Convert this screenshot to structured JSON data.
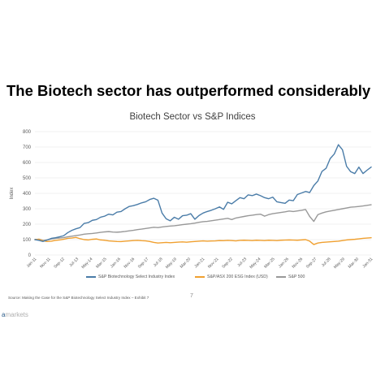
{
  "headline": "The Biotech sector has outperformed considerably",
  "chart_data": {
    "type": "line",
    "title": "Biotech Sector vs S&P Indices",
    "ylabel": "Index",
    "xlabel": "",
    "ylim": [
      0,
      800
    ],
    "yticks": [
      0,
      100,
      200,
      300,
      400,
      500,
      600,
      700,
      800
    ],
    "grid": true,
    "legend_position": "bottom",
    "x_tick_labels": [
      "Jan-11",
      "Nov-11",
      "Sep-12",
      "Jul-13",
      "May-14",
      "Mar-15",
      "Jan-16",
      "Nov-16",
      "Sep-17",
      "Jul-18",
      "May-19",
      "Mar-20",
      "Jan-21",
      "Nov-21",
      "Sep-22",
      "Jul-23",
      "May-24",
      "Mar-25",
      "Jan-26",
      "Nov-26",
      "Sep-27",
      "Jul-28",
      "May-29",
      "Mar-30",
      "Jan-31"
    ],
    "series": [
      {
        "name": "S&P Biotechnology Select Industry Index",
        "color": "#4a7ca8",
        "x": [
          "Jan-11",
          "Apr-11",
          "Jul-11",
          "Oct-11",
          "Jan-12",
          "Apr-12",
          "Jul-12",
          "Oct-12",
          "Jan-13",
          "Apr-13",
          "Jul-13",
          "Oct-13",
          "Jan-14",
          "Apr-14",
          "Jul-14",
          "Oct-14",
          "Jan-15",
          "Apr-15",
          "Jul-15",
          "Oct-15",
          "Jan-16",
          "Apr-16",
          "Jul-16",
          "Oct-16",
          "Jan-17",
          "Apr-17",
          "Jul-17",
          "Oct-17",
          "Jan-18",
          "Apr-18",
          "Jul-18",
          "Oct-18",
          "Jan-19",
          "Apr-19",
          "Jul-19",
          "Oct-19",
          "Jan-20",
          "Apr-20",
          "Jul-20",
          "Oct-20",
          "Jan-21",
          "Apr-21",
          "Jul-21",
          "Oct-21",
          "Jan-22",
          "Apr-22",
          "Jul-22",
          "Oct-22",
          "Jan-23",
          "Apr-23",
          "Jul-23",
          "Oct-23",
          "Jan-24",
          "Apr-24",
          "Jul-24",
          "Oct-24",
          "Jan-25",
          "Apr-25",
          "Jul-25",
          "Oct-25",
          "Jan-26",
          "Apr-26",
          "Jul-26",
          "Oct-26",
          "Jan-27",
          "Apr-27",
          "Jul-27",
          "Oct-27",
          "Jan-28",
          "Apr-28",
          "Jul-28",
          "Oct-28",
          "Jan-29",
          "Apr-29",
          "Jul-29",
          "Oct-29",
          "Jan-30",
          "Apr-30",
          "Jul-30",
          "Oct-30",
          "Jan-31",
          "Apr-31",
          "Jul-31"
        ],
        "values": [
          100,
          95,
          88,
          98,
          108,
          112,
          118,
          125,
          145,
          160,
          170,
          178,
          205,
          210,
          225,
          230,
          245,
          252,
          265,
          260,
          278,
          282,
          300,
          315,
          320,
          328,
          338,
          345,
          360,
          368,
          355,
          272,
          235,
          222,
          245,
          232,
          255,
          258,
          268,
          232,
          256,
          272,
          282,
          290,
          300,
          312,
          296,
          342,
          332,
          352,
          372,
          365,
          390,
          385,
          395,
          385,
          372,
          365,
          375,
          345,
          340,
          335,
          356,
          352,
          392,
          402,
          412,
          405,
          450,
          480,
          542,
          562,
          625,
          655,
          715,
          682,
          575,
          540,
          528,
          570,
          528,
          550,
          570
        ]
      },
      {
        "name": "S&P/ASX 200 ESG Index (USD)",
        "color": "#f0a030",
        "x": [
          "Jan-11",
          "Apr-11",
          "Jul-11",
          "Oct-11",
          "Jan-12",
          "Apr-12",
          "Jul-12",
          "Oct-12",
          "Jan-13",
          "Apr-13",
          "Jul-13",
          "Oct-13",
          "Jan-14",
          "Apr-14",
          "Jul-14",
          "Oct-14",
          "Jan-15",
          "Apr-15",
          "Jul-15",
          "Oct-15",
          "Jan-16",
          "Apr-16",
          "Jul-16",
          "Oct-16",
          "Jan-17",
          "Apr-17",
          "Jul-17",
          "Oct-17",
          "Jan-18",
          "Apr-18",
          "Jul-18",
          "Oct-18",
          "Jan-19",
          "Apr-19",
          "Jul-19",
          "Oct-19",
          "Jan-20",
          "Apr-20",
          "Jul-20",
          "Oct-20",
          "Jan-21",
          "Apr-21",
          "Jul-21",
          "Oct-21",
          "Jan-22",
          "Apr-22",
          "Jul-22",
          "Oct-22",
          "Jan-23",
          "Apr-23",
          "Jul-23",
          "Oct-23",
          "Jan-24",
          "Apr-24",
          "Jul-24",
          "Oct-24",
          "Jan-25",
          "Apr-25",
          "Jul-25",
          "Oct-25",
          "Jan-26",
          "Apr-26",
          "Jul-26",
          "Oct-26",
          "Jan-27",
          "Apr-27",
          "Jul-27",
          "Oct-27",
          "Jan-28",
          "Apr-28",
          "Jul-28",
          "Oct-28",
          "Jan-29",
          "Apr-29",
          "Jul-29",
          "Oct-29",
          "Jan-30",
          "Apr-30",
          "Jul-30",
          "Oct-30",
          "Jan-31",
          "Apr-31",
          "Jul-31"
        ],
        "values": [
          100,
          102,
          92,
          88,
          90,
          95,
          98,
          102,
          108,
          110,
          114,
          106,
          100,
          98,
          102,
          104,
          98,
          96,
          92,
          90,
          88,
          87,
          90,
          92,
          94,
          95,
          93,
          92,
          88,
          82,
          78,
          80,
          82,
          80,
          82,
          84,
          85,
          83,
          86,
          88,
          90,
          92,
          90,
          91,
          92,
          94,
          93,
          95,
          94,
          92,
          95,
          96,
          95,
          94,
          96,
          95,
          94,
          96,
          95,
          94,
          96,
          97,
          98,
          97,
          96,
          98,
          100,
          90,
          68,
          78,
          82,
          84,
          86,
          88,
          90,
          94,
          98,
          100,
          102,
          105,
          108,
          110,
          112
        ]
      },
      {
        "name": "S&P 500",
        "color": "#999999",
        "x": [
          "Jan-11",
          "Apr-11",
          "Jul-11",
          "Oct-11",
          "Jan-12",
          "Apr-12",
          "Jul-12",
          "Oct-12",
          "Jan-13",
          "Apr-13",
          "Jul-13",
          "Oct-13",
          "Jan-14",
          "Apr-14",
          "Jul-14",
          "Oct-14",
          "Jan-15",
          "Apr-15",
          "Jul-15",
          "Oct-15",
          "Jan-16",
          "Apr-16",
          "Jul-16",
          "Oct-16",
          "Jan-17",
          "Apr-17",
          "Jul-17",
          "Oct-17",
          "Jan-18",
          "Apr-18",
          "Jul-18",
          "Oct-18",
          "Jan-19",
          "Apr-19",
          "Jul-19",
          "Oct-19",
          "Jan-20",
          "Apr-20",
          "Jul-20",
          "Oct-20",
          "Jan-21",
          "Apr-21",
          "Jul-21",
          "Oct-21",
          "Jan-22",
          "Apr-22",
          "Jul-22",
          "Oct-22",
          "Jan-23",
          "Apr-23",
          "Jul-23",
          "Oct-23",
          "Jan-24",
          "Apr-24",
          "Jul-24",
          "Oct-24",
          "Jan-25",
          "Apr-25",
          "Jul-25",
          "Oct-25",
          "Jan-26",
          "Apr-26",
          "Jul-26",
          "Oct-26",
          "Jan-27",
          "Apr-27",
          "Jul-27",
          "Oct-27",
          "Jan-28",
          "Apr-28",
          "Jul-28",
          "Oct-28",
          "Jan-29",
          "Apr-29",
          "Jul-29",
          "Oct-29",
          "Jan-30",
          "Apr-30",
          "Jul-30",
          "Oct-30",
          "Jan-31",
          "Apr-31",
          "Jul-31"
        ],
        "values": [
          100,
          103,
          95,
          98,
          104,
          108,
          110,
          113,
          118,
          122,
          126,
          130,
          135,
          138,
          140,
          143,
          147,
          150,
          152,
          149,
          148,
          150,
          153,
          157,
          160,
          165,
          168,
          172,
          176,
          180,
          178,
          182,
          185,
          188,
          190,
          193,
          197,
          200,
          203,
          207,
          212,
          216,
          218,
          222,
          226,
          230,
          234,
          238,
          230,
          240,
          245,
          250,
          255,
          258,
          262,
          265,
          252,
          262,
          268,
          272,
          276,
          280,
          285,
          282,
          286,
          290,
          295,
          250,
          218,
          262,
          272,
          280,
          285,
          290,
          295,
          300,
          305,
          310,
          312,
          315,
          318,
          322,
          326
        ]
      }
    ]
  },
  "source": "Source: Making the Case for the S&P Biotechnology Select Industry Index – Exhibit 7",
  "page_number": "7",
  "brand_mark": "a",
  "brand_text": "markets"
}
